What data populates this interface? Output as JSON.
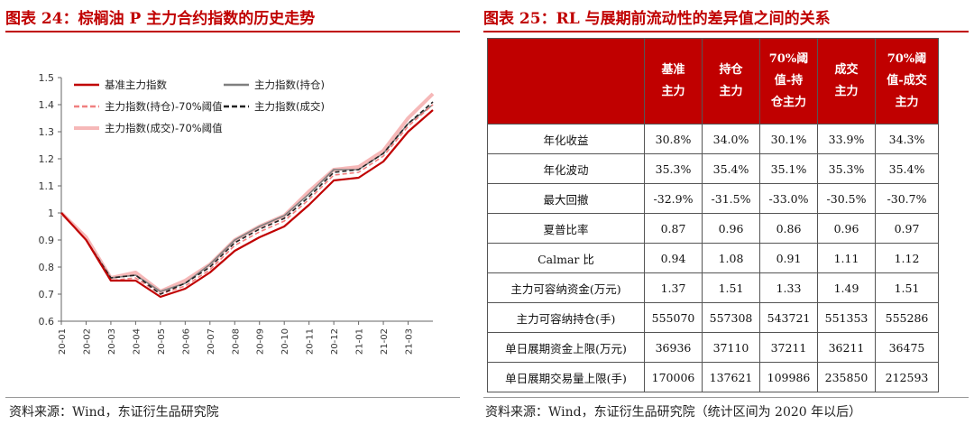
{
  "left": {
    "title": "图表 24：棕榈油 P 主力合约指数的历史走势",
    "source": "资料来源：Wind，东证衍生品研究院"
  },
  "right": {
    "title": "图表 25：RL 与展期前流动性的差异值之间的关系",
    "source": "资料来源：Wind，东证衍生品研究院（统计区间为 2020 年以后）"
  },
  "chart_data": {
    "type": "line",
    "title": "",
    "xlabel": "",
    "ylabel": "",
    "ylim": [
      0.6,
      1.5
    ],
    "yticks": [
      "1.5",
      "1.4",
      "1.3",
      "1.2",
      "1.1",
      "1",
      "0.9",
      "0.8",
      "0.7",
      "0.6"
    ],
    "x": [
      "20-01",
      "20-02",
      "20-03",
      "20-04",
      "20-05",
      "20-06",
      "20-07",
      "20-08",
      "20-09",
      "20-10",
      "20-11",
      "20-12",
      "21-01",
      "21-02",
      "21-03",
      "21-03e"
    ],
    "xtick_labels": [
      "20-01",
      "20-02",
      "20-03",
      "20-04",
      "20-05",
      "20-06",
      "20-07",
      "20-08",
      "20-09",
      "20-10",
      "20-11",
      "20-12",
      "21-01",
      "21-02",
      "21-03"
    ],
    "grid": false,
    "legend": "top-left",
    "series": [
      {
        "name": "基准主力指数",
        "color": "#c00000",
        "style": "solid",
        "values": [
          1.0,
          0.9,
          0.75,
          0.75,
          0.69,
          0.72,
          0.78,
          0.86,
          0.91,
          0.95,
          1.03,
          1.12,
          1.13,
          1.19,
          1.3,
          1.38
        ]
      },
      {
        "name": "主力指数(持仓)",
        "color": "#7f7f7f",
        "style": "solid",
        "values": [
          1.0,
          0.9,
          0.76,
          0.77,
          0.71,
          0.74,
          0.81,
          0.9,
          0.95,
          0.99,
          1.07,
          1.16,
          1.16,
          1.22,
          1.33,
          1.4
        ]
      },
      {
        "name": "主力指数(持仓)-70%阈值",
        "color": "#f08080",
        "style": "dashed",
        "values": [
          1.0,
          0.9,
          0.75,
          0.76,
          0.7,
          0.73,
          0.79,
          0.88,
          0.93,
          0.97,
          1.05,
          1.14,
          1.15,
          1.21,
          1.32,
          1.4
        ]
      },
      {
        "name": "主力指数(成交)",
        "color": "#222222",
        "style": "dashed",
        "values": [
          1.0,
          0.9,
          0.76,
          0.77,
          0.7,
          0.74,
          0.8,
          0.89,
          0.94,
          0.98,
          1.06,
          1.15,
          1.16,
          1.22,
          1.33,
          1.41
        ]
      },
      {
        "name": "主力指数(成交)-70%阈值",
        "color": "#f6b8b8",
        "style": "solid",
        "values": [
          1.0,
          0.91,
          0.76,
          0.78,
          0.71,
          0.75,
          0.81,
          0.9,
          0.95,
          0.99,
          1.08,
          1.16,
          1.17,
          1.23,
          1.35,
          1.44
        ]
      }
    ]
  },
  "table": {
    "corner": "",
    "headers": [
      [
        "基准",
        "主力"
      ],
      [
        "持仓",
        "主力"
      ],
      [
        "70%阈",
        "值-持",
        "仓主力"
      ],
      [
        "成交",
        "主力"
      ],
      [
        "70%阈",
        "值-成交",
        "主力"
      ]
    ],
    "rows": [
      {
        "label": "年化收益",
        "values": [
          "30.8%",
          "34.0%",
          "30.1%",
          "33.9%",
          "34.3%"
        ]
      },
      {
        "label": "年化波动",
        "values": [
          "35.3%",
          "35.4%",
          "35.1%",
          "35.3%",
          "35.4%"
        ]
      },
      {
        "label": "最大回撤",
        "values": [
          "-32.9%",
          "-31.5%",
          "-33.0%",
          "-30.5%",
          "-30.7%"
        ]
      },
      {
        "label": "夏普比率",
        "values": [
          "0.87",
          "0.96",
          "0.86",
          "0.96",
          "0.97"
        ]
      },
      {
        "label": "Calmar 比",
        "values": [
          "0.94",
          "1.08",
          "0.91",
          "1.11",
          "1.12"
        ]
      },
      {
        "label": "主力可容纳资金(万元)",
        "values": [
          "1.37",
          "1.51",
          "1.33",
          "1.49",
          "1.51"
        ]
      },
      {
        "label": "主力可容纳持仓(手)",
        "values": [
          "555070",
          "557308",
          "543721",
          "551353",
          "555286"
        ]
      },
      {
        "label": "单日展期资金上限(万元)",
        "values": [
          "36936",
          "37110",
          "37211",
          "36211",
          "36475"
        ]
      },
      {
        "label": "单日展期交易量上限(手)",
        "values": [
          "170006",
          "137621",
          "109986",
          "235850",
          "212593"
        ]
      }
    ]
  }
}
